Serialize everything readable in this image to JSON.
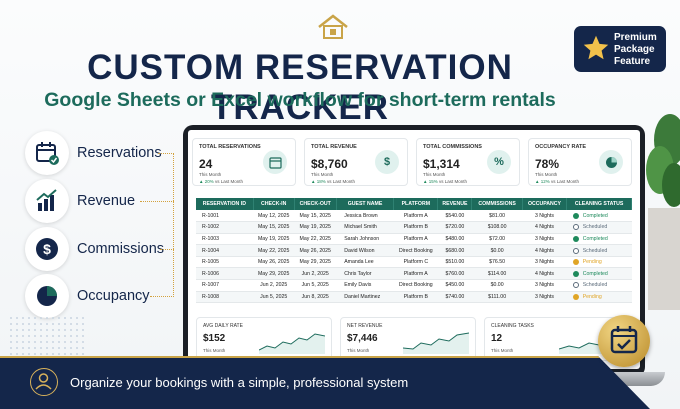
{
  "title": "CUSTOM RESERVATION TRACKER",
  "subtitle": "Google Sheets or Excel workflow for short-term rentals",
  "badge": {
    "line1": "Premium",
    "line2": "Package",
    "line3": "Feature"
  },
  "features": [
    {
      "label": "Reservations",
      "icon": "calendar-check-icon"
    },
    {
      "label": "Revenue",
      "icon": "bar-chart-icon"
    },
    {
      "label": "Commissions",
      "icon": "dollar-icon"
    },
    {
      "label": "Occupancy",
      "icon": "pie-chart-icon"
    }
  ],
  "cards": [
    {
      "title": "TOTAL RESERVATIONS",
      "value": "24",
      "sub": "This Month",
      "delta": "▲ 20%",
      "delta_text": " vs Last Month"
    },
    {
      "title": "TOTAL REVENUE",
      "value": "$8,760",
      "sub": "This Month",
      "delta": "▲ 18%",
      "delta_text": " vs Last Month"
    },
    {
      "title": "TOTAL COMMISSIONS",
      "value": "$1,314",
      "sub": "This Month",
      "delta": "▲ 15%",
      "delta_text": " vs Last Month"
    },
    {
      "title": "OCCUPANCY RATE",
      "value": "78%",
      "sub": "This Month",
      "delta": "▲ 12%",
      "delta_text": " vs Last Month"
    }
  ],
  "table": {
    "headers": [
      "RESERVATION ID",
      "CHECK-IN",
      "CHECK-OUT",
      "GUEST NAME",
      "PLATFORM",
      "REVENUE",
      "COMMISSIONS",
      "OCCUPANCY",
      "CLEANING STATUS"
    ],
    "rows": [
      [
        "R-1001",
        "May 12, 2025",
        "May 15, 2025",
        "Jessica Brown",
        "Platform A",
        "$540.00",
        "$81.00",
        "3 Nights",
        "Completed"
      ],
      [
        "R-1002",
        "May 15, 2025",
        "May 19, 2025",
        "Michael Smith",
        "Platform B",
        "$720.00",
        "$108.00",
        "4 Nights",
        "Scheduled"
      ],
      [
        "R-1003",
        "May 19, 2025",
        "May 22, 2025",
        "Sarah Johnson",
        "Platform A",
        "$480.00",
        "$72.00",
        "3 Nights",
        "Completed"
      ],
      [
        "R-1004",
        "May 22, 2025",
        "May 26, 2025",
        "David Wilson",
        "Direct Booking",
        "$680.00",
        "$0.00",
        "4 Nights",
        "Scheduled"
      ],
      [
        "R-1005",
        "May 26, 2025",
        "May 29, 2025",
        "Amanda Lee",
        "Platform C",
        "$510.00",
        "$76.50",
        "3 Nights",
        "Pending"
      ],
      [
        "R-1006",
        "May 29, 2025",
        "Jun 2, 2025",
        "Chris Taylor",
        "Platform A",
        "$760.00",
        "$114.00",
        "4 Nights",
        "Completed"
      ],
      [
        "R-1007",
        "Jun 2, 2025",
        "Jun 5, 2025",
        "Emily Davis",
        "Direct Booking",
        "$450.00",
        "$0.00",
        "3 Nights",
        "Scheduled"
      ],
      [
        "R-1008",
        "Jun 5, 2025",
        "Jun 8, 2025",
        "Daniel Martinez",
        "Platform B",
        "$740.00",
        "$111.00",
        "3 Nights",
        "Pending"
      ]
    ]
  },
  "status_colors": {
    "Completed": "#1e8a5c",
    "Scheduled": "#5b6b7a",
    "Pending": "#e0a526"
  },
  "minis": [
    {
      "title": "AVG DAILY RATE",
      "value": "$152",
      "sub": "This Month"
    },
    {
      "title": "NET REVENUE",
      "value": "$7,446",
      "sub": "This Month"
    },
    {
      "title": "CLEANING TASKS",
      "value": "12",
      "sub": "This Month"
    }
  ],
  "footer": "Organize your bookings with a simple, professional system"
}
